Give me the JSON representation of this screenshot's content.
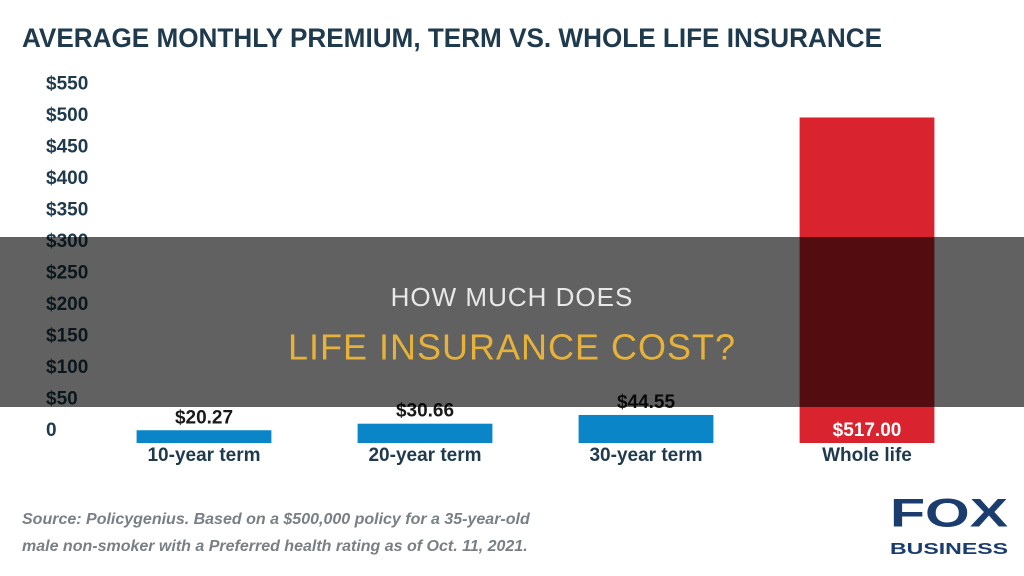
{
  "chart_data": {
    "type": "bar",
    "title": "AVERAGE MONTHLY PREMIUM, TERM VS. WHOLE LIFE INSURANCE",
    "categories": [
      "10-year term",
      "20-year term",
      "30-year term",
      "Whole life"
    ],
    "values": [
      20.27,
      30.66,
      44.55,
      517.0
    ],
    "value_labels": [
      "$20.27",
      "$30.66",
      "$44.55",
      "$517.00"
    ],
    "colors": [
      "#0a86c8",
      "#0a86c8",
      "#0a86c8",
      "#d9232e"
    ],
    "ylim": [
      0,
      550
    ],
    "yticks": [
      0,
      {
        "value": 50,
        "label": "$50"
      },
      {
        "value": 100,
        "label": "$100"
      },
      {
        "value": 150,
        "label": "$150"
      },
      {
        "value": 200,
        "label": "$200"
      },
      {
        "value": 250,
        "label": "$250"
      },
      {
        "value": 300,
        "label": "$300"
      },
      {
        "value": 350,
        "label": "$350"
      },
      {
        "value": 400,
        "label": "$400"
      },
      {
        "value": 450,
        "label": "$450"
      },
      {
        "value": 500,
        "label": "$500"
      },
      {
        "value": 550,
        "label": "$550"
      }
    ],
    "grid": false,
    "source": [
      "Source: Policygenius. Based on a $500,000 policy for a 35-year-old",
      "male non-smoker with a Preferred health rating as of Oct. 11, 2021."
    ]
  },
  "logo": {
    "top": "FOX",
    "bottom": "BUSINESS"
  },
  "overlay": {
    "line1": "HOW MUCH DOES",
    "line2": "LIFE INSURANCE COST?"
  }
}
